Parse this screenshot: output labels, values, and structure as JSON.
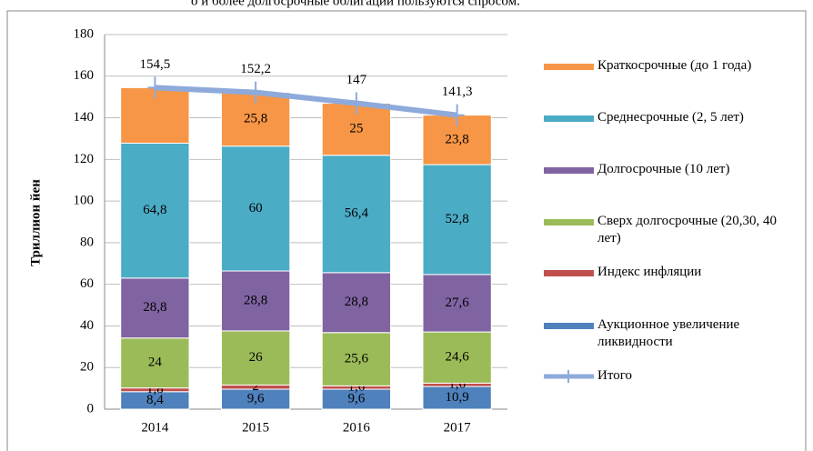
{
  "caption": "о и более долгосрочные облигации пользуются спросом.",
  "chart_data": {
    "type": "bar",
    "stacked": true,
    "y_label": "Триллион йен",
    "categories": [
      "2014",
      "2015",
      "2016",
      "2017"
    ],
    "ylim": [
      0,
      180
    ],
    "yticks": [
      0,
      20,
      40,
      60,
      80,
      100,
      120,
      140,
      160,
      180
    ],
    "grid": true,
    "legend": "right",
    "series": [
      {
        "name": "Аукционное увеличение ликвидности",
        "color": "#4f81bd",
        "values": [
          8.4,
          9.6,
          9.6,
          10.9
        ],
        "value_labels": [
          "8,4",
          "9,6",
          "9,6",
          "10,9"
        ]
      },
      {
        "name": "Индекс инфляции",
        "color": "#c0504d",
        "values": [
          1.8,
          2,
          1.6,
          1.6
        ],
        "value_labels": [
          "1,8",
          "2",
          "1,6",
          "1,6"
        ]
      },
      {
        "name": "Сверх долгосрочные (20,30, 40 лет)",
        "color": "#9bbb59",
        "values": [
          24,
          26,
          25.6,
          24.6
        ],
        "value_labels": [
          "24",
          "26",
          "25,6",
          "24,6"
        ]
      },
      {
        "name": "Долгосрочные (10 лет)",
        "color": "#8064a2",
        "values": [
          28.8,
          28.8,
          28.8,
          27.6
        ],
        "value_labels": [
          "28,8",
          "28,8",
          "28,8",
          "27,6"
        ]
      },
      {
        "name": "Среднесрочные (2, 5 лет)",
        "color": "#4bacc6",
        "values": [
          64.8,
          60,
          56.4,
          52.8
        ],
        "value_labels": [
          "64,8",
          "60",
          "56,4",
          "52,8"
        ]
      },
      {
        "name": "Краткосрочные (до 1 года)",
        "color": "#f79646",
        "values": [
          26.7,
          25.8,
          25,
          23.8
        ],
        "value_labels": [
          null,
          "25,8",
          "25",
          "23,8"
        ]
      },
      {
        "name": "Итого",
        "type": "line",
        "color": "#8eaadb",
        "values": [
          154.5,
          152.2,
          147,
          141.3
        ],
        "value_labels": [
          "154,5",
          "152,2",
          "147",
          "141,3"
        ]
      }
    ]
  }
}
